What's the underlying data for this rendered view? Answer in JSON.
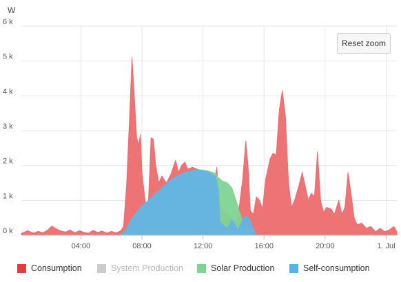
{
  "chart_data": {
    "type": "area",
    "ylabel": "W",
    "yticks": [
      "0 k",
      "1 k",
      "2 k",
      "3 k",
      "4 k",
      "5 k",
      "6 k"
    ],
    "ylim": [
      0,
      6000
    ],
    "xticks": [
      {
        "hour": 4,
        "label": "04:00"
      },
      {
        "hour": 8,
        "label": "08:00"
      },
      {
        "hour": 12,
        "label": "12:00"
      },
      {
        "hour": 16,
        "label": "16:00"
      },
      {
        "hour": 20,
        "label": "20:00"
      },
      {
        "hour": 24,
        "label": "1. Jul"
      }
    ],
    "xlim": [
      0.1,
      24.7
    ],
    "grid": true,
    "legend_position": "bottom",
    "series": [
      {
        "name": "Consumption",
        "color": "#ec6b6e",
        "visible": true,
        "points": [
          [
            0.1,
            50
          ],
          [
            0.5,
            130
          ],
          [
            0.9,
            60
          ],
          [
            1.2,
            110
          ],
          [
            1.5,
            70
          ],
          [
            1.8,
            140
          ],
          [
            2.1,
            260
          ],
          [
            2.4,
            180
          ],
          [
            2.7,
            120
          ],
          [
            3.0,
            90
          ],
          [
            3.3,
            150
          ],
          [
            3.6,
            70
          ],
          [
            3.9,
            130
          ],
          [
            4.2,
            80
          ],
          [
            4.5,
            60
          ],
          [
            4.8,
            140
          ],
          [
            5.1,
            80
          ],
          [
            5.4,
            120
          ],
          [
            5.7,
            60
          ],
          [
            6.0,
            110
          ],
          [
            6.3,
            70
          ],
          [
            6.6,
            120
          ],
          [
            6.8,
            250
          ],
          [
            7.0,
            1500
          ],
          [
            7.2,
            3500
          ],
          [
            7.35,
            5100
          ],
          [
            7.5,
            4000
          ],
          [
            7.65,
            2800
          ],
          [
            7.8,
            2600
          ],
          [
            7.9,
            2900
          ],
          [
            8.0,
            1800
          ],
          [
            8.2,
            1000
          ],
          [
            8.4,
            700
          ],
          [
            8.6,
            2800
          ],
          [
            8.75,
            2750
          ],
          [
            8.9,
            2000
          ],
          [
            9.1,
            1500
          ],
          [
            9.3,
            1700
          ],
          [
            9.6,
            1500
          ],
          [
            9.9,
            1750
          ],
          [
            10.2,
            2150
          ],
          [
            10.4,
            1800
          ],
          [
            10.6,
            2000
          ],
          [
            10.8,
            2100
          ],
          [
            11.0,
            1900
          ],
          [
            11.3,
            1950
          ],
          [
            11.6,
            1900
          ],
          [
            11.9,
            1850
          ],
          [
            12.2,
            1800
          ],
          [
            12.5,
            1700
          ],
          [
            12.8,
            1650
          ],
          [
            12.9,
            1950
          ],
          [
            13.0,
            1300
          ],
          [
            13.1,
            900
          ],
          [
            13.3,
            700
          ],
          [
            13.6,
            600
          ],
          [
            13.9,
            450
          ],
          [
            14.2,
            400
          ],
          [
            14.4,
            900
          ],
          [
            14.6,
            1600
          ],
          [
            14.8,
            2700
          ],
          [
            14.95,
            2000
          ],
          [
            15.1,
            700
          ],
          [
            15.3,
            600
          ],
          [
            15.5,
            1100
          ],
          [
            15.7,
            1000
          ],
          [
            15.9,
            750
          ],
          [
            16.1,
            1600
          ],
          [
            16.4,
            2200
          ],
          [
            16.6,
            2350
          ],
          [
            16.8,
            2300
          ],
          [
            17.0,
            3600
          ],
          [
            17.2,
            4150
          ],
          [
            17.4,
            3400
          ],
          [
            17.6,
            1500
          ],
          [
            17.8,
            800
          ],
          [
            18.0,
            1000
          ],
          [
            18.3,
            1450
          ],
          [
            18.5,
            1800
          ],
          [
            18.7,
            1400
          ],
          [
            18.9,
            1000
          ],
          [
            19.1,
            1200
          ],
          [
            19.3,
            1100
          ],
          [
            19.5,
            2400
          ],
          [
            19.7,
            1000
          ],
          [
            19.9,
            650
          ],
          [
            20.1,
            800
          ],
          [
            20.4,
            750
          ],
          [
            20.6,
            600
          ],
          [
            20.9,
            1000
          ],
          [
            21.1,
            600
          ],
          [
            21.3,
            800
          ],
          [
            21.5,
            1800
          ],
          [
            21.7,
            1200
          ],
          [
            21.9,
            500
          ],
          [
            22.1,
            300
          ],
          [
            22.4,
            350
          ],
          [
            22.7,
            200
          ],
          [
            23.0,
            250
          ],
          [
            23.3,
            100
          ],
          [
            23.6,
            200
          ],
          [
            23.9,
            100
          ],
          [
            24.2,
            150
          ],
          [
            24.5,
            250
          ],
          [
            24.7,
            100
          ]
        ]
      },
      {
        "name": "System Production",
        "color": "#cccccc",
        "visible": false,
        "points": []
      },
      {
        "name": "Solar Production",
        "color": "#7ed492",
        "visible": true,
        "points": [
          [
            6.6,
            0
          ],
          [
            6.9,
            120
          ],
          [
            7.3,
            450
          ],
          [
            7.8,
            750
          ],
          [
            8.3,
            950
          ],
          [
            8.8,
            1150
          ],
          [
            9.3,
            1350
          ],
          [
            9.8,
            1550
          ],
          [
            10.3,
            1700
          ],
          [
            10.8,
            1800
          ],
          [
            11.3,
            1850
          ],
          [
            11.8,
            1880
          ],
          [
            12.3,
            1850
          ],
          [
            12.8,
            1780
          ],
          [
            13.0,
            1650
          ],
          [
            13.3,
            1550
          ],
          [
            13.6,
            1500
          ],
          [
            13.9,
            1350
          ],
          [
            14.2,
            950
          ],
          [
            14.4,
            650
          ],
          [
            14.6,
            400
          ],
          [
            14.8,
            200
          ],
          [
            15.0,
            80
          ],
          [
            15.3,
            0
          ]
        ]
      },
      {
        "name": "Self-consumption",
        "color": "#64b3e5",
        "visible": true,
        "points": [
          [
            6.6,
            0
          ],
          [
            6.9,
            120
          ],
          [
            7.3,
            450
          ],
          [
            7.8,
            750
          ],
          [
            8.3,
            950
          ],
          [
            8.8,
            1150
          ],
          [
            9.3,
            1350
          ],
          [
            9.8,
            1550
          ],
          [
            10.3,
            1700
          ],
          [
            10.8,
            1800
          ],
          [
            11.3,
            1850
          ],
          [
            11.8,
            1860
          ],
          [
            12.3,
            1820
          ],
          [
            12.8,
            1700
          ],
          [
            13.0,
            1300
          ],
          [
            13.1,
            400
          ],
          [
            13.3,
            300
          ],
          [
            13.6,
            200
          ],
          [
            13.9,
            450
          ],
          [
            14.1,
            300
          ],
          [
            14.3,
            150
          ],
          [
            14.6,
            450
          ],
          [
            14.8,
            550
          ],
          [
            15.0,
            500
          ],
          [
            15.3,
            200
          ],
          [
            15.5,
            0
          ]
        ]
      }
    ]
  },
  "controls": {
    "reset_zoom_label": "Reset zoom"
  }
}
